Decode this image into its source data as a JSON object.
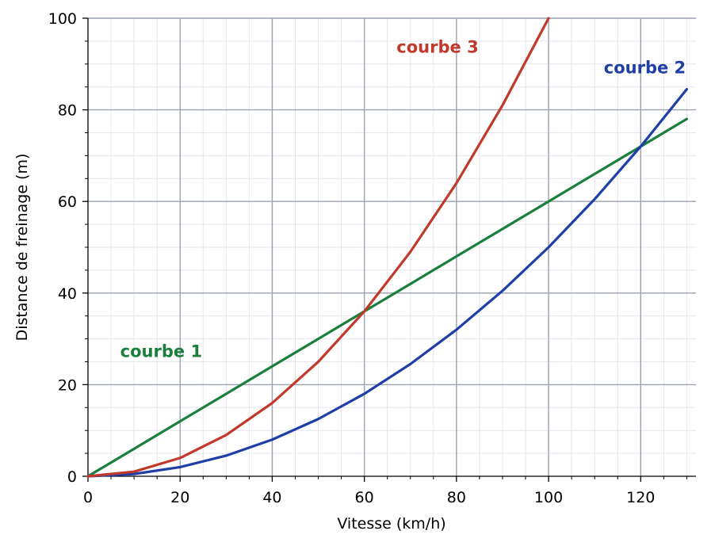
{
  "chart_data": {
    "type": "line",
    "xlabel": "Vitesse (km/h)",
    "ylabel": "Distance de freinage (m)",
    "xlim": [
      0,
      132
    ],
    "ylim": [
      0,
      100
    ],
    "x_ticks": [
      0,
      20,
      40,
      60,
      80,
      100,
      120
    ],
    "y_ticks": [
      0,
      20,
      40,
      60,
      80,
      100
    ],
    "x_minor_step": 5,
    "y_minor_step": 5,
    "grid": true,
    "series": [
      {
        "name": "courbe 1",
        "color": "#1a7f3c",
        "x": [
          0,
          10,
          20,
          30,
          40,
          50,
          60,
          70,
          80,
          90,
          100,
          110,
          120,
          130
        ],
        "y": [
          0,
          6,
          12,
          18,
          24,
          30,
          36,
          42,
          48,
          54,
          60,
          66,
          72,
          78
        ],
        "label_at": [
          7,
          26
        ]
      },
      {
        "name": "courbe 2",
        "color": "#1f3fa6",
        "x": [
          0,
          10,
          20,
          30,
          40,
          50,
          60,
          70,
          80,
          90,
          100,
          110,
          120,
          130
        ],
        "y": [
          0,
          0.5,
          2,
          4.5,
          8,
          12.5,
          18,
          24.5,
          32,
          40.5,
          50,
          60.5,
          72,
          84.5
        ],
        "label_at": [
          112,
          88
        ]
      },
      {
        "name": "courbe 3",
        "color": "#c0392b",
        "x": [
          0,
          10,
          20,
          30,
          40,
          50,
          60,
          70,
          80,
          90,
          100
        ],
        "y": [
          0,
          1,
          4,
          9,
          16,
          25,
          36,
          49,
          64,
          81,
          100
        ],
        "label_at": [
          67,
          92.5
        ]
      }
    ]
  }
}
